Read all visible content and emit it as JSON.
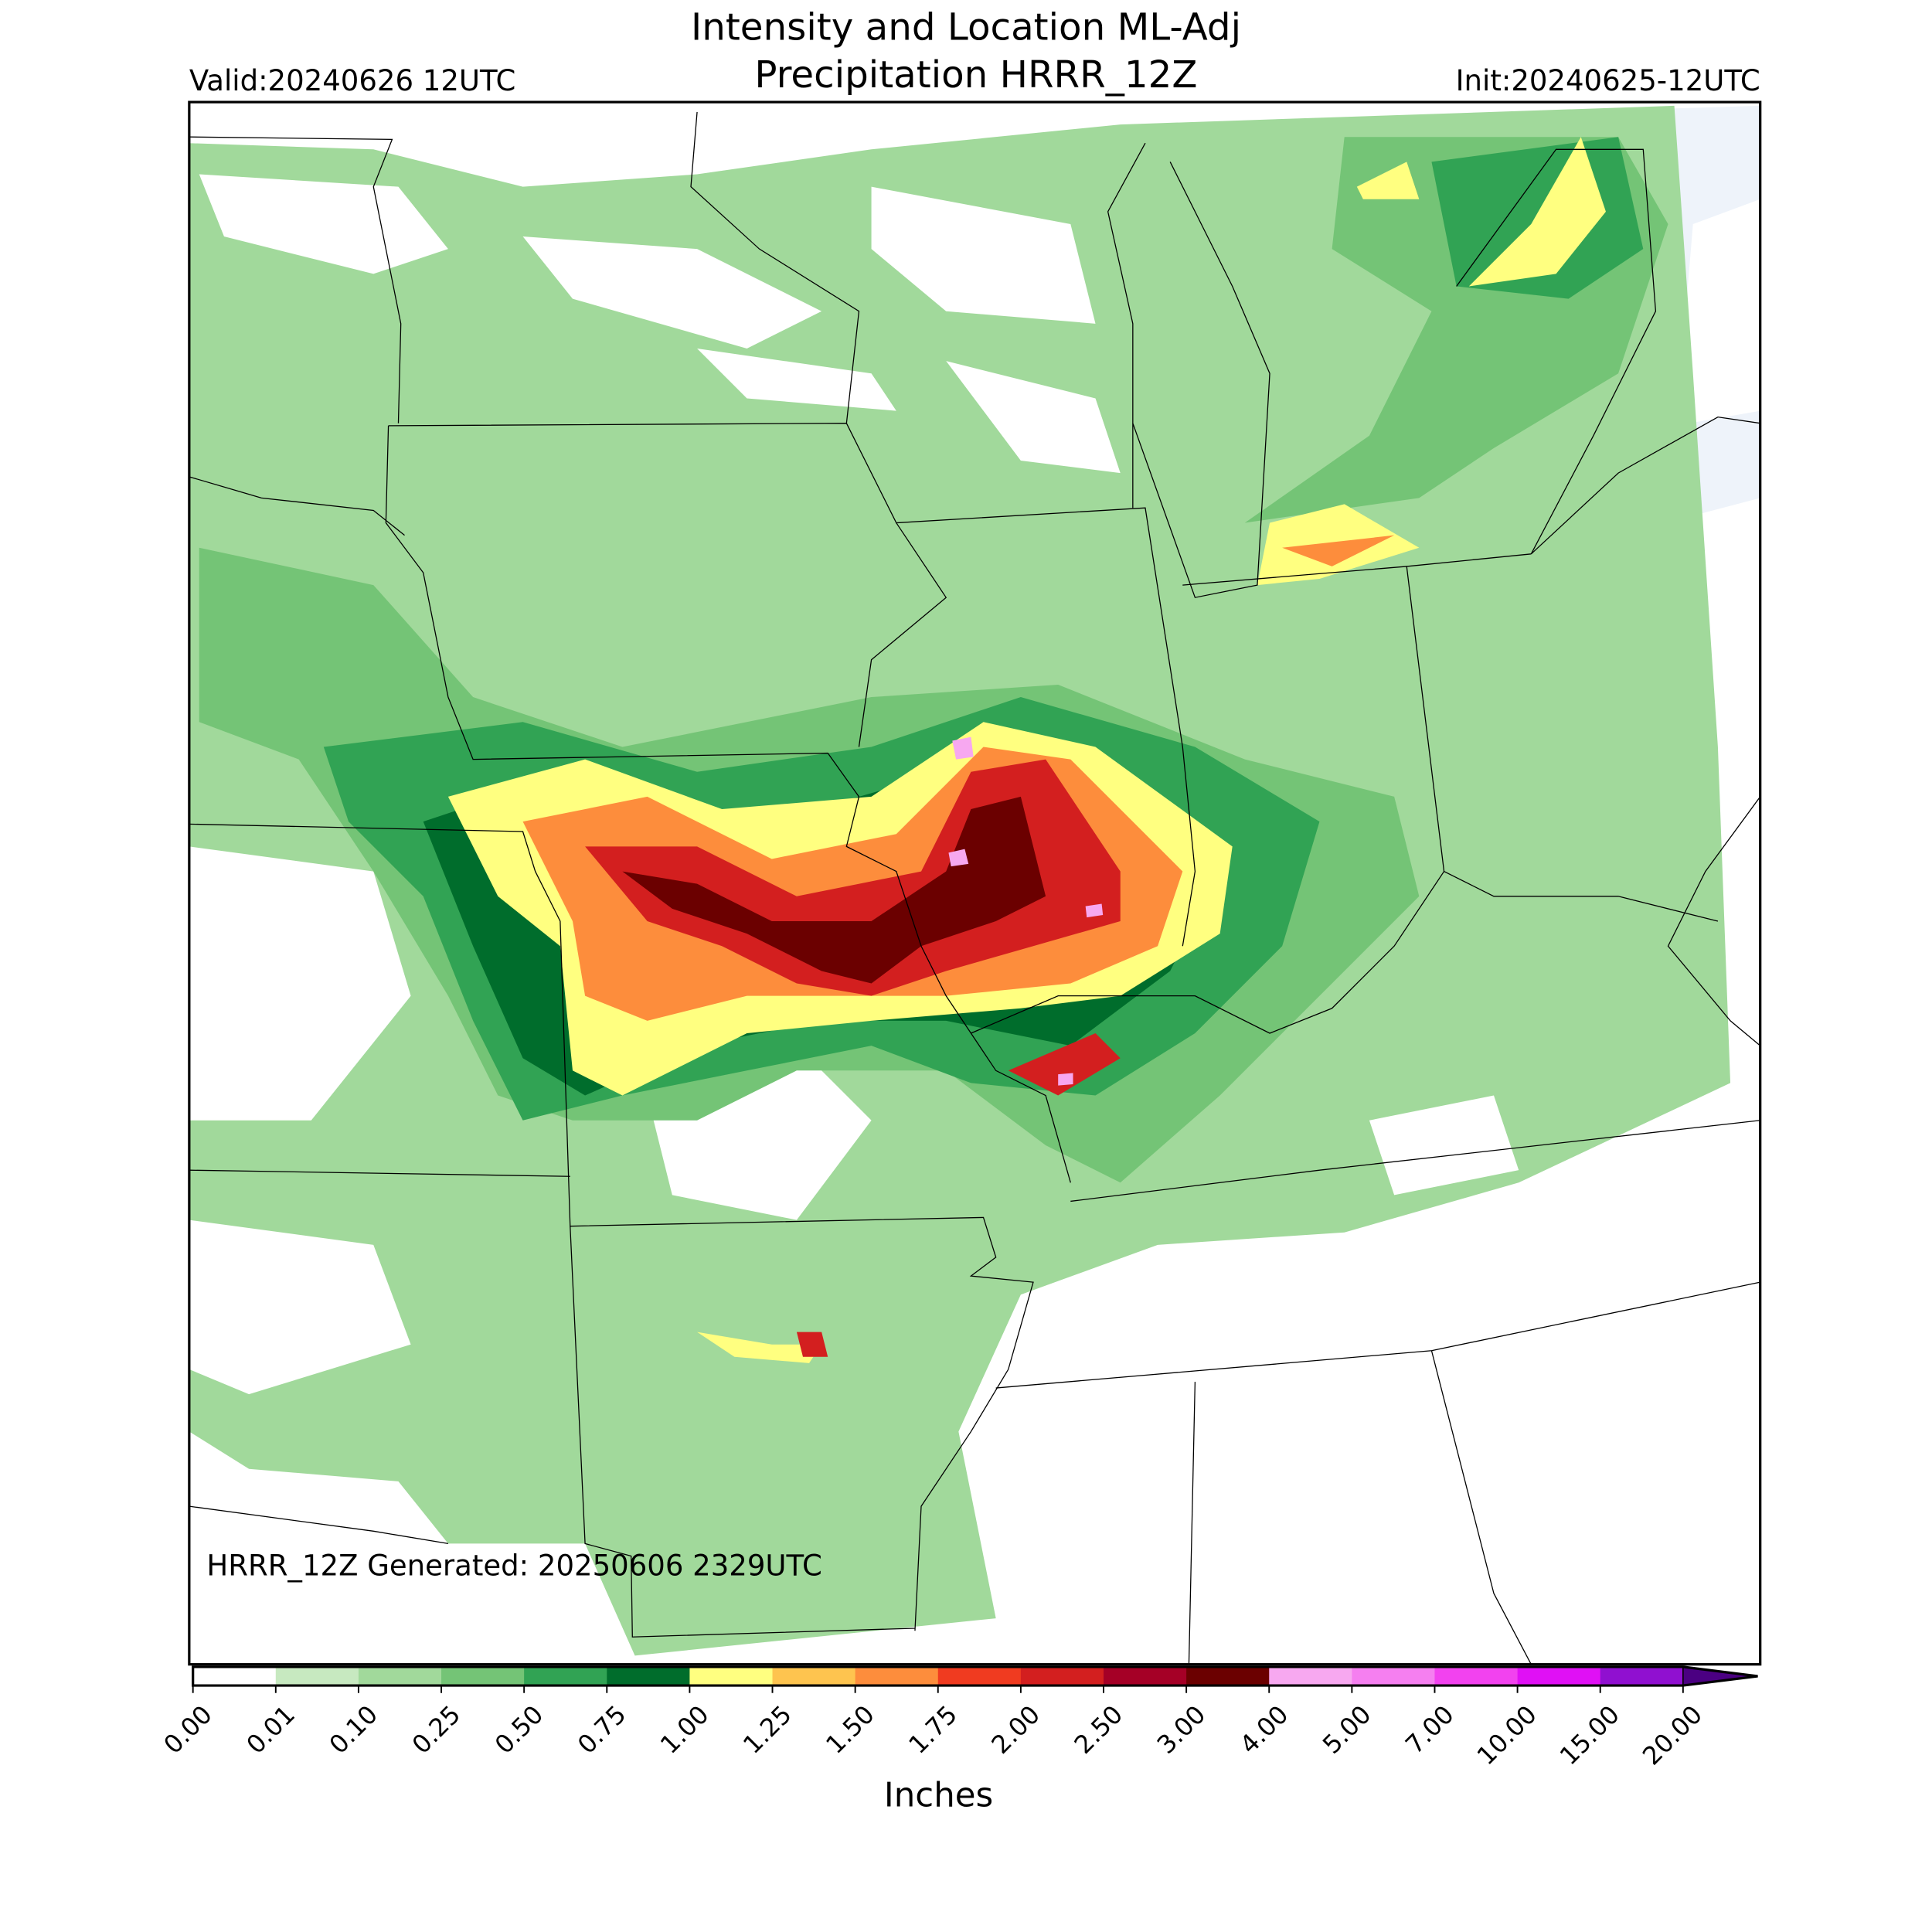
{
  "header": {
    "title_line1": "Intensity and Location ML-Adj",
    "title_line2": "Precipitation HRRR_12Z",
    "valid": "Valid:20240626 12UTC",
    "init": "Init:20240625-12UTC"
  },
  "footer_note": "HRRR_12Z Generated: 20250606 2329UTC",
  "colorbar": {
    "label": "Inches",
    "ticks": [
      {
        "value": 0,
        "label": "0.00"
      },
      {
        "value": 0.01,
        "label": "0.01"
      },
      {
        "value": 0.1,
        "label": "0.10"
      },
      {
        "value": 0.25,
        "label": "0.25"
      },
      {
        "value": 0.5,
        "label": "0.50"
      },
      {
        "value": 0.75,
        "label": "0.75"
      },
      {
        "value": 1,
        "label": "1.00"
      },
      {
        "value": 1.25,
        "label": "1.25"
      },
      {
        "value": 1.5,
        "label": "1.50"
      },
      {
        "value": 1.75,
        "label": "1.75"
      },
      {
        "value": 2,
        "label": "2.00"
      },
      {
        "value": 2.5,
        "label": "2.50"
      },
      {
        "value": 3,
        "label": "3.00"
      },
      {
        "value": 4,
        "label": "4.00"
      },
      {
        "value": 5,
        "label": "5.00"
      },
      {
        "value": 7,
        "label": "7.00"
      },
      {
        "value": 10,
        "label": "10.00"
      },
      {
        "value": 15,
        "label": "15.00"
      },
      {
        "value": 20,
        "label": "20.00"
      }
    ],
    "colors": [
      "#ffffff",
      "#c7e9c0",
      "#a1d99b",
      "#74c476",
      "#31a354",
      "#006d2c",
      "#ffff80",
      "#fec44f",
      "#fd8d3c",
      "#f03b20",
      "#d31f1f",
      "#a50026",
      "#6b0000",
      "#f7a8f0",
      "#f57ff0",
      "#f242ef",
      "#e010f5",
      "#9010d0"
    ],
    "extend_color": "#4b0082"
  }
}
